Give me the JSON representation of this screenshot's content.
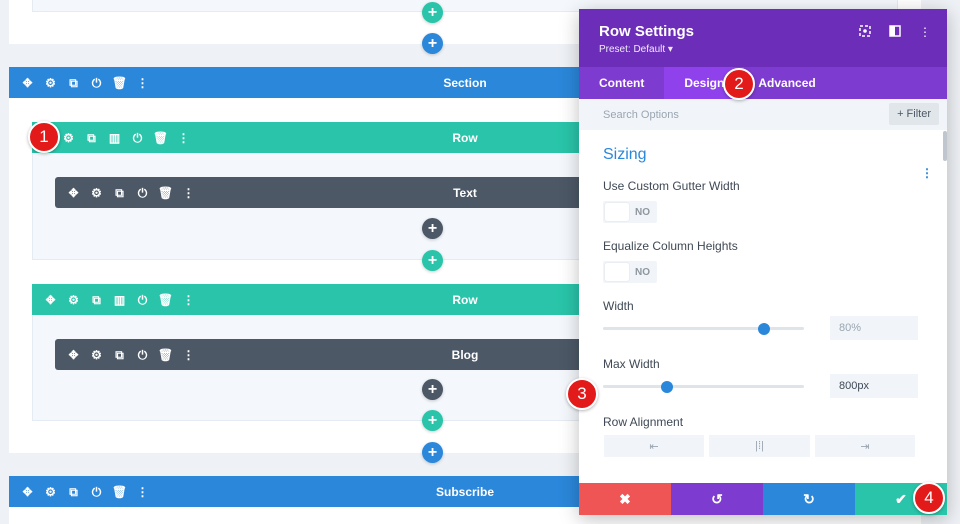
{
  "builder": {
    "top_plus_green": "+",
    "top_plus_blue": "+",
    "section": {
      "label": "Section"
    },
    "row1": {
      "label": "Row"
    },
    "text_module": {
      "label": "Text"
    },
    "row2": {
      "label": "Row"
    },
    "blog_module": {
      "label": "Blog"
    },
    "subscribe_section": {
      "label": "Subscribe"
    },
    "add_symbol": "+"
  },
  "icons": {
    "move": "✥",
    "gear": "⚙",
    "duplicate": "⧉",
    "columns": "▥",
    "power": "⏻",
    "trash": "🗑",
    "more": "⋮"
  },
  "badges": [
    "1",
    "2",
    "3",
    "4"
  ],
  "modal": {
    "title": "Row Settings",
    "preset": "Preset: Default ▾",
    "header_icons": [
      "target-icon",
      "sidebar-icon",
      "more-icon"
    ],
    "tabs": [
      "Content",
      "Design",
      "Advanced"
    ],
    "active_tab": "Design",
    "search_placeholder": "Search Options",
    "filter_label": "+ Filter",
    "section_title": "Sizing",
    "fields": {
      "gutter_label": "Use Custom Gutter Width",
      "gutter_value": "NO",
      "equalize_label": "Equalize Column Heights",
      "equalize_value": "NO",
      "width_label": "Width",
      "width_value": "80%",
      "width_level": 0.8,
      "maxwidth_label": "Max Width",
      "maxwidth_value": "800px",
      "maxwidth_level": 0.32,
      "alignment_label": "Row Alignment",
      "alignment_options": [
        "⇤",
        "|⁞|",
        "⇥"
      ]
    },
    "footer": {
      "cancel": "✖",
      "undo": "↺",
      "redo": "↻",
      "save": "✔"
    }
  },
  "colors": {
    "section": "#2b87da",
    "row": "#29c4a9",
    "module": "#4c5866",
    "modal_header": "#6c2eb9",
    "badge": "#e31a1a",
    "footer_cancel": "#ef5555",
    "footer_undo": "#7e3bd0",
    "footer_redo": "#2b87da",
    "footer_save": "#29c4a9"
  }
}
